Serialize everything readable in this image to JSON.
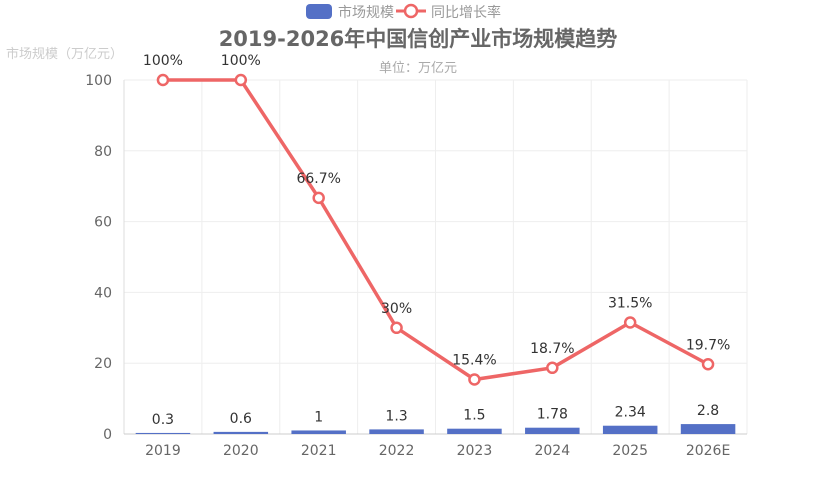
{
  "chart_data": {
    "type": "bar+line",
    "title": "2019-2026年中国信创产业市场规模趋势",
    "subtitle": "单位：万亿元",
    "ylabel": "市场规模（万亿元）",
    "categories": [
      "2019",
      "2020",
      "2021",
      "2022",
      "2023",
      "2024",
      "2025",
      "2026E"
    ],
    "ylim": [
      0,
      100
    ],
    "yticks": [
      0,
      20,
      40,
      60,
      80,
      100
    ],
    "grid": true,
    "legend_placement": "top-center",
    "series": [
      {
        "name": "市场规模",
        "type": "bar",
        "color": "#5470c6",
        "values": [
          0.3,
          0.6,
          1,
          1.3,
          1.5,
          1.78,
          2.34,
          2.8
        ],
        "labels": [
          "0.3",
          "0.6",
          "1",
          "1.3",
          "1.5",
          "1.78",
          "2.34",
          "2.8"
        ]
      },
      {
        "name": "同比增长率",
        "type": "line",
        "color": "#ee6666",
        "values": [
          100,
          100,
          66.7,
          30,
          15.4,
          18.7,
          31.5,
          19.7
        ],
        "labels": [
          "100%",
          "100%",
          "66.7%",
          "30%",
          "15.4%",
          "18.7%",
          "31.5%",
          "19.7%"
        ]
      }
    ]
  }
}
